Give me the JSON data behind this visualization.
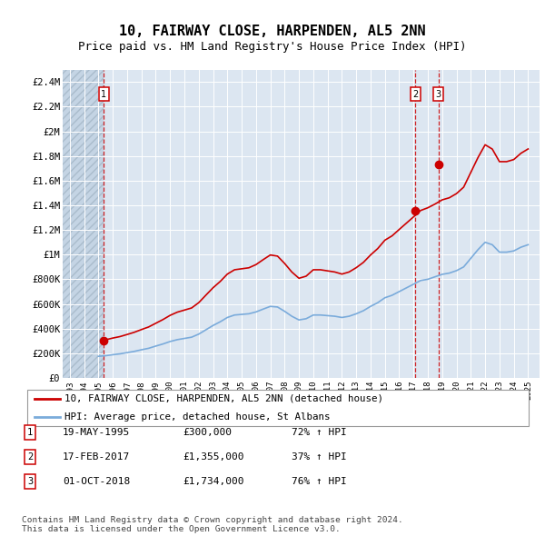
{
  "title": "10, FAIRWAY CLOSE, HARPENDEN, AL5 2NN",
  "subtitle": "Price paid vs. HM Land Registry's House Price Index (HPI)",
  "title_fontsize": 11,
  "subtitle_fontsize": 9,
  "background_color": "#ffffff",
  "plot_bg_color": "#dce6f1",
  "red_line_color": "#cc0000",
  "blue_line_color": "#7aabdb",
  "marker_color": "#cc0000",
  "vline_color": "#cc0000",
  "ylim": [
    0,
    2500000
  ],
  "yticks": [
    0,
    200000,
    400000,
    600000,
    800000,
    1000000,
    1200000,
    1400000,
    1600000,
    1800000,
    2000000,
    2200000,
    2400000
  ],
  "ytick_labels": [
    "£0",
    "£200K",
    "£400K",
    "£600K",
    "£800K",
    "£1M",
    "£1.2M",
    "£1.4M",
    "£1.6M",
    "£1.8M",
    "£2M",
    "£2.2M",
    "£2.4M"
  ],
  "xlim_start": 1992.5,
  "xlim_end": 2025.8,
  "hatch_end": 1995.38,
  "transactions": [
    {
      "label": "1",
      "date": "19-MAY-1995",
      "year": 1995.38,
      "price": 300000,
      "pct": "72%",
      "dir": "↑"
    },
    {
      "label": "2",
      "date": "17-FEB-2017",
      "year": 2017.12,
      "price": 1355000,
      "pct": "37%",
      "dir": "↑"
    },
    {
      "label": "3",
      "date": "01-OCT-2018",
      "year": 2018.75,
      "price": 1734000,
      "pct": "76%",
      "dir": "↑"
    }
  ],
  "legend_line1": "10, FAIRWAY CLOSE, HARPENDEN, AL5 2NN (detached house)",
  "legend_line2": "HPI: Average price, detached house, St Albans",
  "footer": "Contains HM Land Registry data © Crown copyright and database right 2024.\nThis data is licensed under the Open Government Licence v3.0.",
  "hpi_years": [
    1995,
    1995.5,
    1996,
    1996.5,
    1997,
    1997.5,
    1998,
    1998.5,
    1999,
    1999.5,
    2000,
    2000.5,
    2001,
    2001.5,
    2002,
    2002.5,
    2003,
    2003.5,
    2004,
    2004.5,
    2005,
    2005.5,
    2006,
    2006.5,
    2007,
    2007.5,
    2008,
    2008.5,
    2009,
    2009.5,
    2010,
    2010.5,
    2011,
    2011.5,
    2012,
    2012.5,
    2013,
    2013.5,
    2014,
    2014.5,
    2015,
    2015.5,
    2016,
    2016.5,
    2017,
    2017.5,
    2018,
    2018.5,
    2019,
    2019.5,
    2020,
    2020.5,
    2021,
    2021.5,
    2022,
    2022.5,
    2023,
    2023.5,
    2024,
    2024.5,
    2025
  ],
  "hpi_values": [
    175000,
    180000,
    188000,
    195000,
    205000,
    215000,
    228000,
    240000,
    258000,
    275000,
    295000,
    310000,
    320000,
    330000,
    355000,
    390000,
    425000,
    455000,
    490000,
    510000,
    515000,
    520000,
    535000,
    558000,
    580000,
    575000,
    540000,
    500000,
    470000,
    480000,
    510000,
    510000,
    505000,
    500000,
    490000,
    500000,
    520000,
    545000,
    580000,
    610000,
    650000,
    670000,
    700000,
    730000,
    760000,
    790000,
    800000,
    820000,
    840000,
    850000,
    870000,
    900000,
    970000,
    1040000,
    1100000,
    1080000,
    1020000,
    1020000,
    1030000,
    1060000,
    1080000
  ],
  "red_years": [
    1995.38,
    1995.5,
    1996,
    1996.5,
    1997,
    1997.5,
    1998,
    1998.5,
    1999,
    1999.5,
    2000,
    2000.5,
    2001,
    2001.5,
    2002,
    2002.5,
    2003,
    2003.5,
    2004,
    2004.5,
    2005,
    2005.5,
    2006,
    2006.5,
    2007,
    2007.5,
    2008,
    2008.5,
    2009,
    2009.5,
    2010,
    2010.5,
    2011,
    2011.5,
    2012,
    2012.5,
    2013,
    2013.5,
    2014,
    2014.5,
    2015,
    2015.5,
    2016,
    2016.5,
    2017,
    2017.5,
    2018,
    2018.5,
    2019,
    2019.5,
    2020,
    2020.5,
    2021,
    2021.5,
    2022,
    2022.5,
    2023,
    2023.5,
    2024,
    2024.5,
    2025
  ],
  "red_values": [
    300000,
    309000,
    323000,
    335000,
    352000,
    370000,
    392000,
    413000,
    443000,
    473000,
    507000,
    533000,
    550000,
    567000,
    610000,
    671000,
    731000,
    782000,
    842000,
    877000,
    885000,
    893000,
    919000,
    959000,
    997000,
    988000,
    928000,
    859000,
    808000,
    825000,
    877000,
    877000,
    868000,
    859000,
    842000,
    859000,
    894000,
    937000,
    997000,
    1049000,
    1117000,
    1152000,
    1204000,
    1255000,
    1306000,
    1358000,
    1380000,
    1410000,
    1444000,
    1461000,
    1495000,
    1547000,
    1667000,
    1787000,
    1891000,
    1856000,
    1754000,
    1754000,
    1771000,
    1822000,
    1857000
  ]
}
